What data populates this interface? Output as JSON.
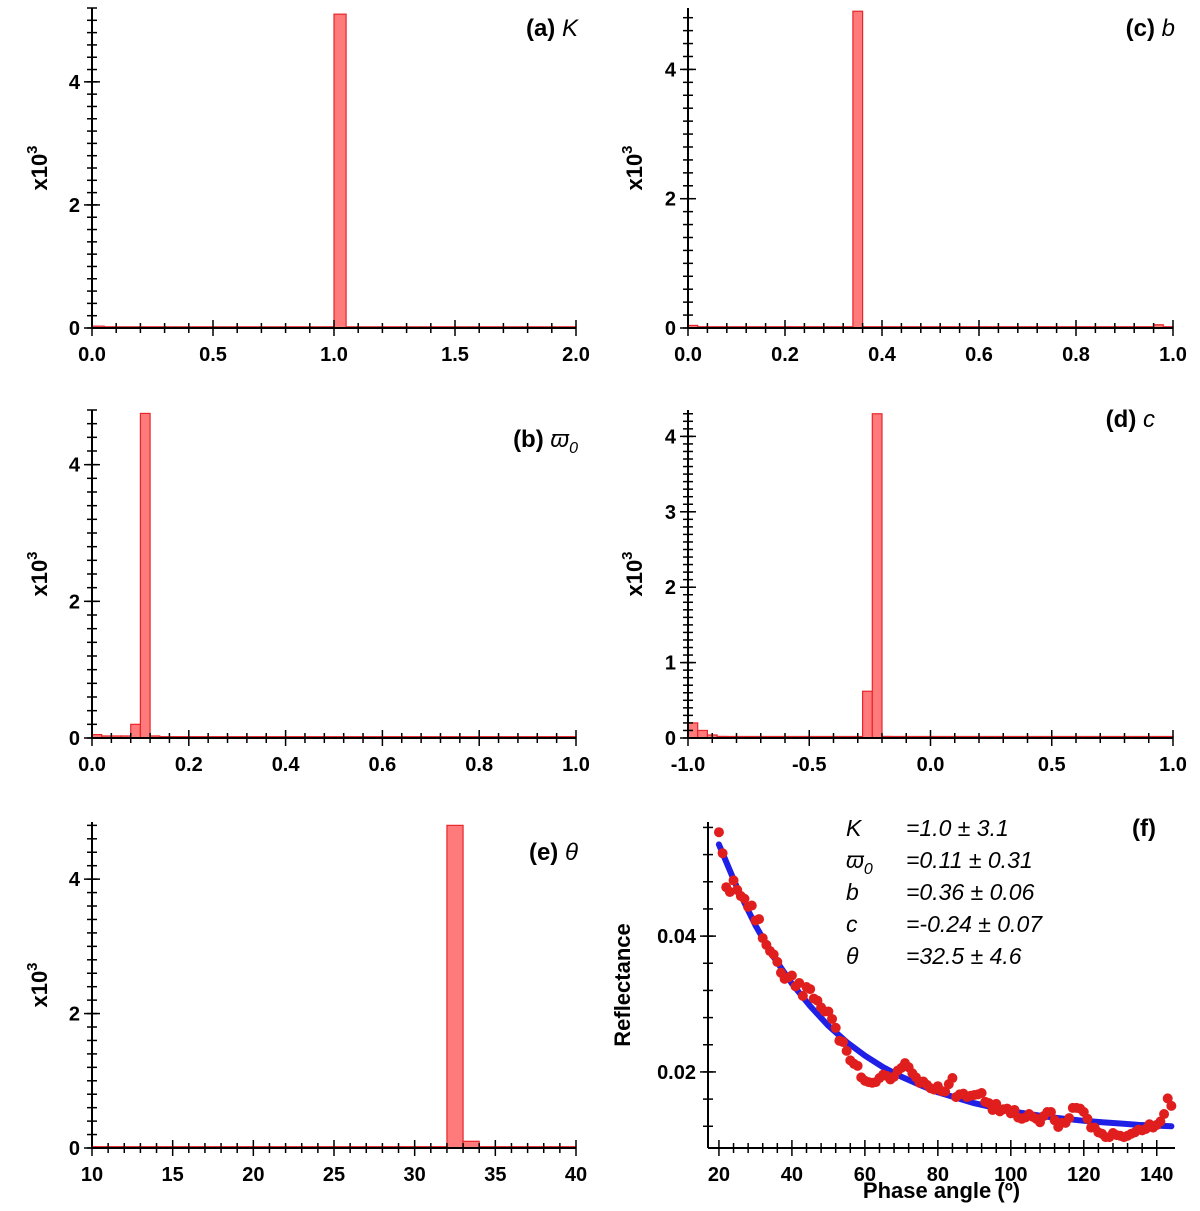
{
  "chart_data": [
    {
      "id": "a",
      "type": "bar",
      "title": "(a)",
      "symbol": "K",
      "ylabel": "x10",
      "ylabel_exp": "3",
      "xlim": [
        0,
        2
      ],
      "ylim": [
        0,
        5.2
      ],
      "xticks": [
        "0.0",
        "0.5",
        "1.0",
        "1.5",
        "2.0"
      ],
      "xtick_values": [
        0,
        0.5,
        1,
        1.5,
        2
      ],
      "yticks": [
        "0",
        "2",
        "4"
      ],
      "ytick_values": [
        0,
        2,
        4
      ],
      "bin_width": 0.05,
      "bins": [
        {
          "x0": 0.0,
          "value": 0.03
        },
        {
          "x0": 1.0,
          "value": 5.1
        }
      ],
      "baseline": 0.02
    },
    {
      "id": "c",
      "type": "bar",
      "title": "(c)",
      "symbol": "b",
      "ylabel": "x10",
      "ylabel_exp": "3",
      "xlim": [
        0,
        1
      ],
      "ylim": [
        0,
        4.95
      ],
      "xticks": [
        "0.0",
        "0.2",
        "0.4",
        "0.6",
        "0.8",
        "1.0"
      ],
      "xtick_values": [
        0,
        0.2,
        0.4,
        0.6,
        0.8,
        1.0
      ],
      "yticks": [
        "0",
        "2",
        "4"
      ],
      "ytick_values": [
        0,
        2,
        4
      ],
      "bin_width": 0.02,
      "bins": [
        {
          "x0": 0.0,
          "value": 0.04
        },
        {
          "x0": 0.34,
          "value": 4.9
        },
        {
          "x0": 0.96,
          "value": 0.05
        }
      ],
      "baseline": 0.02
    },
    {
      "id": "b",
      "type": "bar",
      "title": "(b)",
      "symbol": "ϖ",
      "symbol_sub": "0",
      "ylabel": "x10",
      "ylabel_exp": "3",
      "xlim": [
        0,
        1
      ],
      "ylim": [
        0,
        4.8
      ],
      "xticks": [
        "0.0",
        "0.2",
        "0.4",
        "0.6",
        "0.8",
        "1.0"
      ],
      "xtick_values": [
        0,
        0.2,
        0.4,
        0.6,
        0.8,
        1.0
      ],
      "yticks": [
        "0",
        "2",
        "4"
      ],
      "ytick_values": [
        0,
        2,
        4
      ],
      "bin_width": 0.02,
      "bins": [
        {
          "x0": 0.0,
          "value": 0.05
        },
        {
          "x0": 0.02,
          "value": 0.03
        },
        {
          "x0": 0.04,
          "value": 0.03
        },
        {
          "x0": 0.06,
          "value": 0.03
        },
        {
          "x0": 0.08,
          "value": 0.2
        },
        {
          "x0": 0.1,
          "value": 4.75
        },
        {
          "x0": 0.12,
          "value": 0.03
        }
      ],
      "baseline": 0.02
    },
    {
      "id": "d",
      "type": "bar",
      "title": "(d)",
      "symbol": "c",
      "ylabel": "x10",
      "ylabel_exp": "3",
      "xlim": [
        -1,
        1
      ],
      "ylim": [
        0,
        4.35
      ],
      "xticks": [
        "-1.0",
        "-0.5",
        "0.0",
        "0.5",
        "1.0"
      ],
      "xtick_values": [
        -1,
        -0.5,
        0,
        0.5,
        1
      ],
      "yticks": [
        "0",
        "1",
        "2",
        "3",
        "4"
      ],
      "ytick_values": [
        0,
        1,
        2,
        3,
        4
      ],
      "bin_width": 0.04,
      "bins": [
        {
          "x0": -1.0,
          "value": 0.2
        },
        {
          "x0": -0.96,
          "value": 0.1
        },
        {
          "x0": -0.92,
          "value": 0.04
        },
        {
          "x0": -0.88,
          "value": 0.02
        },
        {
          "x0": -0.28,
          "value": 0.62
        },
        {
          "x0": -0.24,
          "value": 4.3
        },
        {
          "x0": -0.2,
          "value": 0.02
        }
      ],
      "baseline": 0.02
    },
    {
      "id": "e",
      "type": "bar",
      "title": "(e)",
      "symbol": "θ",
      "ylabel": "x10",
      "ylabel_exp": "3",
      "xlim": [
        10,
        40
      ],
      "ylim": [
        0,
        4.85
      ],
      "xticks": [
        "10",
        "15",
        "20",
        "25",
        "30",
        "35",
        "40"
      ],
      "xtick_values": [
        10,
        15,
        20,
        25,
        30,
        35,
        40
      ],
      "yticks": [
        "0",
        "2",
        "4"
      ],
      "ytick_values": [
        0,
        2,
        4
      ],
      "bin_width": 1.0,
      "bins": [
        {
          "x0": 32.0,
          "value": 4.8
        },
        {
          "x0": 33.0,
          "value": 0.1
        }
      ],
      "baseline": 0.02
    },
    {
      "id": "f",
      "type": "scatter",
      "title": "(f)",
      "xlabel": "Phase angle (º)",
      "ylabel": "Reflectance",
      "xlim": [
        17,
        145
      ],
      "ylim": [
        0.0088,
        0.0568
      ],
      "xticks": [
        "20",
        "40",
        "60",
        "80",
        "100",
        "120",
        "140"
      ],
      "xtick_values": [
        20,
        40,
        60,
        80,
        100,
        120,
        140
      ],
      "yticks": [
        "0.02",
        "0.04"
      ],
      "ytick_values": [
        0.02,
        0.04
      ],
      "annotations": [
        {
          "name": "K",
          "sub": "",
          "value": "=1.0 ± 3.1"
        },
        {
          "name": "ϖ",
          "sub": "0",
          "value": "=0.11 ± 0.31"
        },
        {
          "name": "b",
          "sub": "",
          "value": "=0.36 ± 0.06"
        },
        {
          "name": "c",
          "sub": "",
          "value": "=-0.24 ± 0.07"
        },
        {
          "name": "θ",
          "sub": "",
          "value": "=32.5 ± 4.6"
        }
      ],
      "points_x": [
        20.0,
        21.0,
        22.0,
        23.0,
        24.0,
        25.0,
        26.0,
        27.0,
        28.0,
        29.0,
        30.0,
        31.0,
        32.0,
        33.0,
        34.0,
        35.0,
        36.0,
        37.0,
        38.0,
        39.0,
        40.0,
        41.0,
        42.0,
        43.0,
        44.0,
        45.0,
        46.0,
        47.0,
        48.0,
        49.0,
        50.0,
        51.0,
        52.0,
        53.0,
        54.0,
        55.0,
        56.0,
        57.0,
        58.0,
        59.0,
        60.0,
        61.0,
        62.0,
        63.0,
        64.0,
        65.0,
        66.0,
        67.0,
        68.0,
        69.0,
        70.0,
        71.0,
        72.0,
        73.0,
        74.0,
        75.0,
        76.0,
        77.0,
        78.0,
        79.0,
        80.0,
        81.0,
        82.0,
        83.0,
        84.0,
        85.0,
        86.0,
        87.0,
        88.0,
        89.0,
        90.0,
        91.0,
        92.0,
        93.0,
        94.0,
        95.0,
        96.0,
        97.0,
        98.0,
        99.0,
        100.0,
        101.0,
        102.0,
        103.0,
        104.0,
        105.0,
        106.0,
        107.0,
        108.0,
        109.0,
        110.0,
        111.0,
        112.0,
        113.0,
        114.0,
        115.0,
        116.0,
        117.0,
        118.0,
        119.0,
        120.0,
        121.0,
        122.0,
        123.0,
        124.0,
        125.0,
        126.0,
        127.0,
        128.0,
        129.0,
        130.0,
        131.0,
        132.0,
        133.0,
        134.0,
        135.0,
        136.0,
        137.0,
        138.0,
        139.0,
        140.0,
        141.0,
        142.0,
        143.0,
        144.0
      ],
      "points_y": [
        0.0553,
        0.0522,
        0.0472,
        0.0465,
        0.0482,
        0.0468,
        0.0459,
        0.0455,
        0.0443,
        0.0445,
        0.0423,
        0.0425,
        0.0397,
        0.0387,
        0.0378,
        0.0373,
        0.0362,
        0.0346,
        0.0337,
        0.0339,
        0.0342,
        0.0326,
        0.0331,
        0.0312,
        0.0325,
        0.0322,
        0.0308,
        0.0305,
        0.0295,
        0.0289,
        0.0289,
        0.0278,
        0.0265,
        0.0246,
        0.0244,
        0.0231,
        0.0217,
        0.0212,
        0.0209,
        0.0192,
        0.0187,
        0.0185,
        0.0184,
        0.0185,
        0.0191,
        0.0196,
        0.0194,
        0.0189,
        0.0193,
        0.0202,
        0.0206,
        0.0213,
        0.0207,
        0.0198,
        0.0192,
        0.0184,
        0.0186,
        0.0181,
        0.0176,
        0.0174,
        0.0179,
        0.0172,
        0.0171,
        0.0182,
        0.0191,
        0.0163,
        0.0167,
        0.0168,
        0.0163,
        0.0165,
        0.0166,
        0.0167,
        0.0169,
        0.0156,
        0.0154,
        0.0144,
        0.0153,
        0.0142,
        0.0145,
        0.0146,
        0.0139,
        0.0144,
        0.0133,
        0.0131,
        0.0133,
        0.0138,
        0.0134,
        0.0131,
        0.0126,
        0.0135,
        0.0141,
        0.0141,
        0.0129,
        0.0119,
        0.0125,
        0.0125,
        0.0132,
        0.0147,
        0.0147,
        0.0146,
        0.0141,
        0.0131,
        0.0118,
        0.0118,
        0.0111,
        0.0109,
        0.0104,
        0.0104,
        0.011,
        0.0107,
        0.0106,
        0.0104,
        0.0106,
        0.0109,
        0.0111,
        0.0115,
        0.0114,
        0.0116,
        0.0123,
        0.0118,
        0.0122,
        0.0127,
        0.0138,
        0.0161,
        0.015
      ],
      "fit_x": [
        20,
        25,
        30,
        35,
        40,
        45,
        50,
        55,
        60,
        65,
        70,
        75,
        80,
        85,
        90,
        95,
        100,
        105,
        110,
        115,
        120,
        125,
        130,
        135,
        140,
        144
      ],
      "fit_y": [
        0.0535,
        0.0471,
        0.0416,
        0.0369,
        0.033,
        0.0297,
        0.0268,
        0.0244,
        0.0224,
        0.0207,
        0.0193,
        0.0181,
        0.017,
        0.0162,
        0.0154,
        0.0148,
        0.0142,
        0.0138,
        0.0134,
        0.0131,
        0.0128,
        0.0126,
        0.0124,
        0.0122,
        0.0121,
        0.012
      ]
    }
  ]
}
